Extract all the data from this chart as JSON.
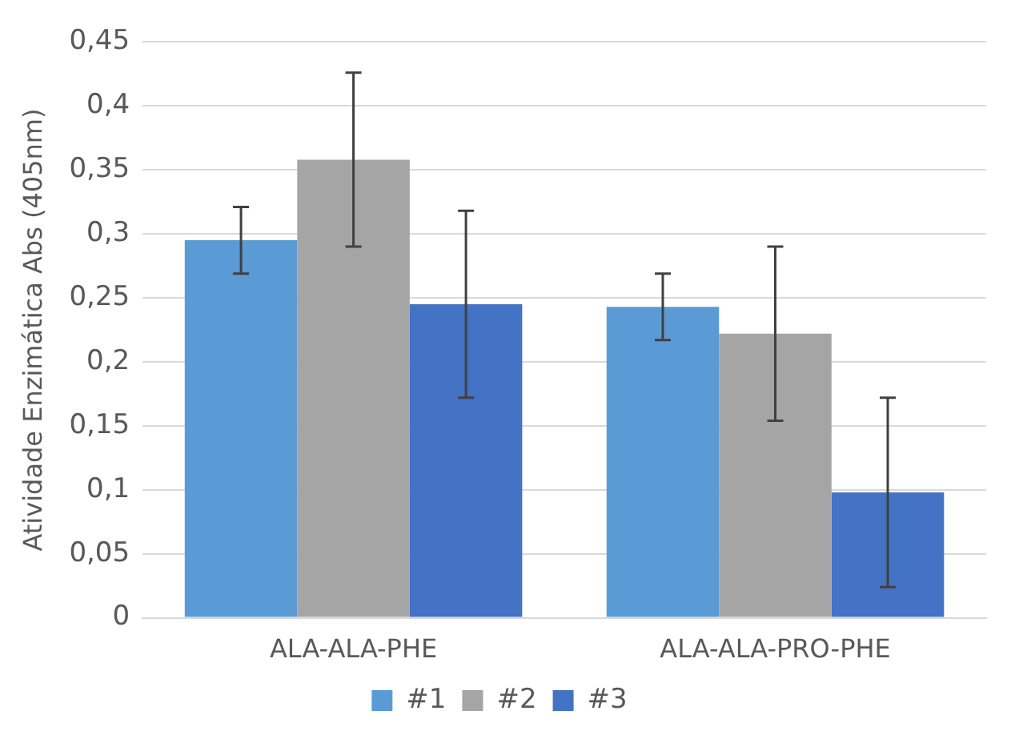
{
  "chart_data": {
    "type": "bar",
    "ylabel": "Atividade Enzimática Abs (405nm)",
    "categories": [
      "ALA-ALA-PHE",
      "ALA-ALA-PRO-PHE"
    ],
    "series": [
      {
        "name": "#1",
        "color": "#5b9bd5",
        "values": [
          0.295,
          0.243
        ],
        "errors": [
          0.026,
          0.026
        ]
      },
      {
        "name": "#2",
        "color": "#a5a5a5",
        "values": [
          0.358,
          0.222
        ],
        "errors": [
          0.068,
          0.068
        ]
      },
      {
        "name": "#3",
        "color": "#4472c4",
        "values": [
          0.245,
          0.098
        ],
        "errors": [
          0.073,
          0.074
        ]
      }
    ],
    "ylim": [
      0,
      0.45
    ],
    "yticks": [
      {
        "value": 0,
        "label": "0"
      },
      {
        "value": 0.05,
        "label": "0,05"
      },
      {
        "value": 0.1,
        "label": "0,1"
      },
      {
        "value": 0.15,
        "label": "0,15"
      },
      {
        "value": 0.2,
        "label": "0,2"
      },
      {
        "value": 0.25,
        "label": "0,25"
      },
      {
        "value": 0.3,
        "label": "0,3"
      },
      {
        "value": 0.35,
        "label": "0,35"
      },
      {
        "value": 0.4,
        "label": "0,4"
      },
      {
        "value": 0.45,
        "label": "0,45"
      }
    ],
    "grid": "y",
    "legend": "bottom"
  }
}
